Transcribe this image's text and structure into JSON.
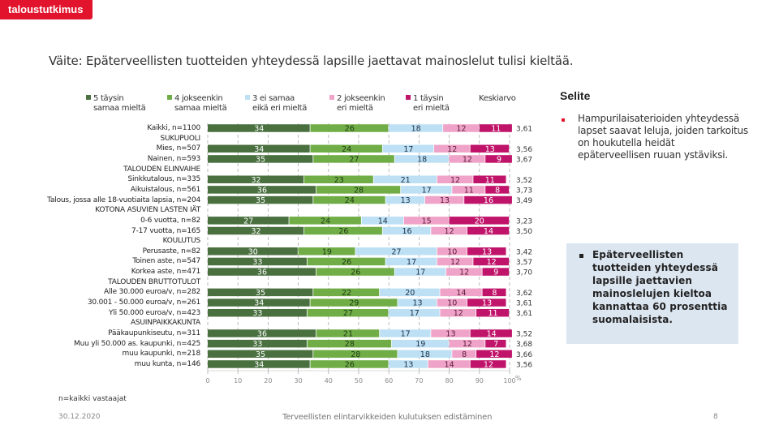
{
  "brand": {
    "logo_text": "taloustutkimus",
    "color": "#e2142d"
  },
  "title": "Väite: Epäterveellisten tuotteiden yhteydessä lapsille jaettavat mainoslelut tulisi kieltää.",
  "legend": {
    "items": [
      {
        "line1": "5 täysin",
        "line2": "samaa mieltä",
        "color": "#4a7040"
      },
      {
        "line1": "4 jokseenkin",
        "line2": "samaa mieltä",
        "color": "#70ad47"
      },
      {
        "line1": "3 ei samaa",
        "line2": "eikä eri mieltä",
        "color": "#bde0f5"
      },
      {
        "line1": "2 jokseenkin",
        "line2": "eri mieltä",
        "color": "#f0a3c8"
      },
      {
        "line1": "1 täysin",
        "line2": "eri mieltä",
        "color": "#c0136a"
      }
    ],
    "average_label": "Keskiarvo"
  },
  "chart_data": {
    "type": "bar",
    "orientation": "horizontal",
    "stacked": true,
    "xlabel": "",
    "x_unit": "%",
    "xlim": [
      0,
      100
    ],
    "x_ticks": [
      0,
      10,
      20,
      30,
      40,
      50,
      60,
      70,
      80,
      90,
      100
    ],
    "grid": true,
    "legend_position": "top",
    "series_names": [
      "5 täysin samaa mieltä",
      "4 jokseenkin samaa mieltä",
      "3 ei samaa eikä eri mieltä",
      "2 jokseenkin eri mieltä",
      "1 täysin eri mieltä"
    ],
    "series_colors": [
      "#4a7040",
      "#70ad47",
      "#bde0f5",
      "#f0a3c8",
      "#c0136a"
    ],
    "label_colors": [
      "#ffffff",
      "#1d3a12",
      "#1d2f45",
      "#5a1d3a",
      "#ffffff"
    ],
    "rows": [
      {
        "label": "Kaikki, n=1100",
        "values": [
          34,
          26,
          18,
          12,
          11
        ],
        "average": "3,61"
      },
      {
        "label": "SUKUPUOLI",
        "header": true
      },
      {
        "label": "Mies, n=507",
        "values": [
          34,
          24,
          17,
          12,
          13
        ],
        "average": "3,56"
      },
      {
        "label": "Nainen, n=593",
        "values": [
          35,
          27,
          18,
          12,
          9
        ],
        "average": "3,67"
      },
      {
        "label": "TALOUDEN ELINVAIHE",
        "header": true
      },
      {
        "label": "Sinkkutalous, n=335",
        "values": [
          32,
          23,
          21,
          12,
          11
        ],
        "average": "3,52"
      },
      {
        "label": "Aikuistalous, n=561",
        "values": [
          36,
          28,
          17,
          11,
          8
        ],
        "average": "3,73"
      },
      {
        "label": "Talous, jossa alle 18-vuotiaita lapsia, n=204",
        "values": [
          35,
          24,
          13,
          13,
          16
        ],
        "average": "3,49"
      },
      {
        "label": "KOTONA ASUVIEN LASTEN IÄT",
        "header": true
      },
      {
        "label": "0-6 vuotta, n=82",
        "values": [
          27,
          24,
          14,
          15,
          20
        ],
        "average": "3,23"
      },
      {
        "label": "7-17 vuotta, n=165",
        "values": [
          32,
          26,
          16,
          12,
          14
        ],
        "average": "3,50"
      },
      {
        "label": "KOULUTUS",
        "header": true
      },
      {
        "label": "Perusaste, n=82",
        "values": [
          30,
          19,
          27,
          10,
          13
        ],
        "average": "3,42"
      },
      {
        "label": "Toinen aste, n=547",
        "values": [
          33,
          26,
          17,
          12,
          12
        ],
        "average": "3,57"
      },
      {
        "label": "Korkea aste, n=471",
        "values": [
          36,
          26,
          17,
          12,
          9
        ],
        "average": "3,70"
      },
      {
        "label": "TALOUDEN BRUTTOTULOT",
        "header": true
      },
      {
        "label": "Alle 30.000 euroa/v, n=282",
        "values": [
          35,
          22,
          20,
          14,
          8
        ],
        "average": "3,62"
      },
      {
        "label": "30.001 - 50.000 euroa/v, n=261",
        "values": [
          34,
          29,
          13,
          10,
          13
        ],
        "average": "3,61"
      },
      {
        "label": "Yli 50.000 euroa/v, n=423",
        "values": [
          33,
          27,
          17,
          12,
          11
        ],
        "average": "3,61"
      },
      {
        "label": "ASUINPAIKKAKUNTA",
        "header": true
      },
      {
        "label": "Pääkaupunkiseutu, n=311",
        "values": [
          36,
          21,
          17,
          13,
          14
        ],
        "average": "3,52"
      },
      {
        "label": "Muu yli 50.000 as. kaupunki, n=425",
        "values": [
          33,
          28,
          19,
          12,
          7
        ],
        "average": "3,68"
      },
      {
        "label": "muu kaupunki, n=218",
        "values": [
          35,
          28,
          18,
          8,
          12
        ],
        "average": "3,66"
      },
      {
        "label": "muu kunta, n=146",
        "values": [
          34,
          26,
          13,
          14,
          12
        ],
        "average": "3,56"
      }
    ]
  },
  "selite": {
    "title": "Selite",
    "text": "Hampurilaisaterioiden yhteydessä lapset saavat leluja, joiden tarkoitus on houkutella heidät epäterveellisen ruuan ystäviksi."
  },
  "callout": {
    "text": "Epäterveellisten tuotteiden yhteydessä lapsille jaettavien mainoslelujen kieltoa kannattaa 60 prosenttia suomalaisista.",
    "background": "#dce6f1"
  },
  "footer": {
    "note": "n=kaikki vastaajat",
    "date": "30.12.2020",
    "center": "Terveellisten elintarvikkeiden kulutuksen edistäminen",
    "page": "8"
  }
}
